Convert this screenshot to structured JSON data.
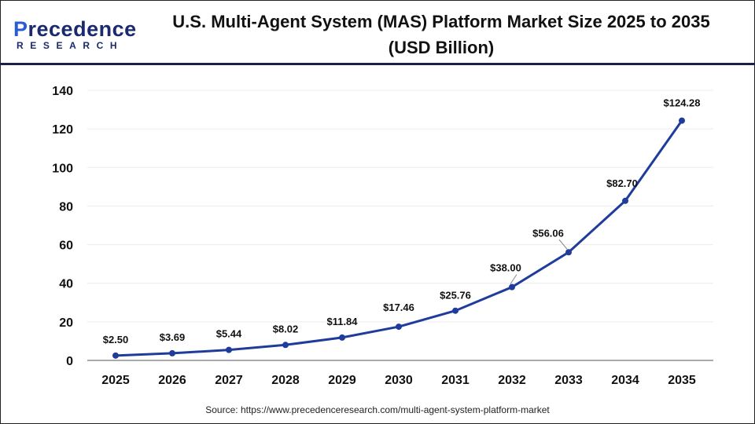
{
  "header": {
    "logo_text": "Precedence RESEARCH",
    "title": "U.S. Multi-Agent System (MAS) Platform Market Size 2025 to 2035 (USD Billion)"
  },
  "source": "Source: https://www.precedenceresearch.com/multi-agent-system-platform-market",
  "chart_data": {
    "type": "line",
    "title": "U.S. Multi-Agent System (MAS) Platform Market Size 2025 to 2035 (USD Billion)",
    "categories": [
      "2025",
      "2026",
      "2027",
      "2028",
      "2029",
      "2030",
      "2031",
      "2032",
      "2033",
      "2034",
      "2035"
    ],
    "values": [
      2.5,
      3.69,
      5.44,
      8.02,
      11.84,
      17.46,
      25.76,
      38.0,
      56.06,
      82.7,
      124.28
    ],
    "data_labels": [
      "$2.50",
      "$3.69",
      "$5.44",
      "$8.02",
      "$11.84",
      "$17.46",
      "$25.76",
      "$38.00",
      "$56.06",
      "$82.70",
      "$124.28"
    ],
    "yticks": [
      "0",
      "20",
      "40",
      "60",
      "80",
      "100",
      "120",
      "140"
    ],
    "ylim": [
      0,
      140
    ],
    "xlabel": "",
    "ylabel": "",
    "grid": true,
    "line_color": "#1f3c9c"
  }
}
